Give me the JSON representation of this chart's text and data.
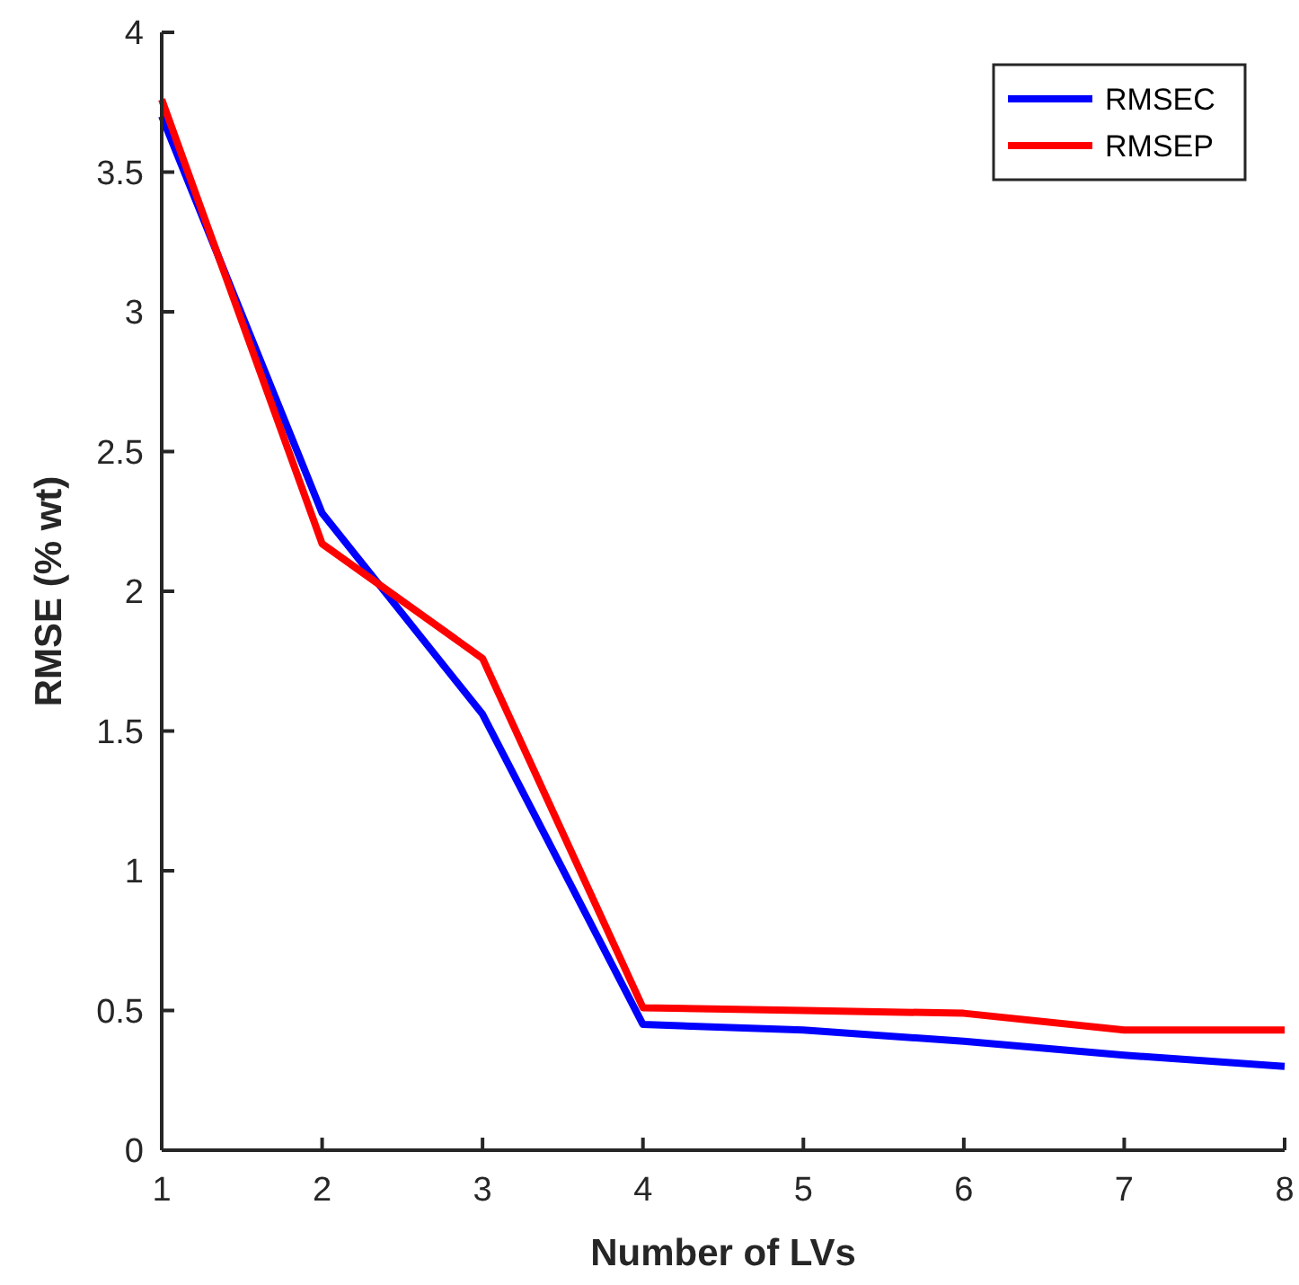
{
  "chart_data": {
    "type": "line",
    "xlabel": "Number of LVs",
    "ylabel": "RMSE (% wt)",
    "x": [
      1,
      2,
      3,
      4,
      5,
      6,
      7,
      8
    ],
    "series": [
      {
        "name": "RMSEC",
        "color": "#0000ff",
        "values": [
          3.7,
          2.28,
          1.56,
          0.45,
          0.43,
          0.39,
          0.34,
          0.3
        ]
      },
      {
        "name": "RMSEP",
        "color": "#ff0000",
        "values": [
          3.76,
          2.17,
          1.76,
          0.51,
          0.5,
          0.49,
          0.43,
          0.43
        ]
      }
    ],
    "xlim": [
      1,
      8
    ],
    "xticks": [
      1,
      2,
      3,
      4,
      5,
      6,
      7,
      8
    ],
    "ylim": [
      0,
      4
    ],
    "yticks": [
      0,
      0.5,
      1,
      1.5,
      2,
      2.5,
      3,
      3.5,
      4
    ],
    "grid": false,
    "legend": "top right",
    "line_style": "solid",
    "marker": "none"
  }
}
